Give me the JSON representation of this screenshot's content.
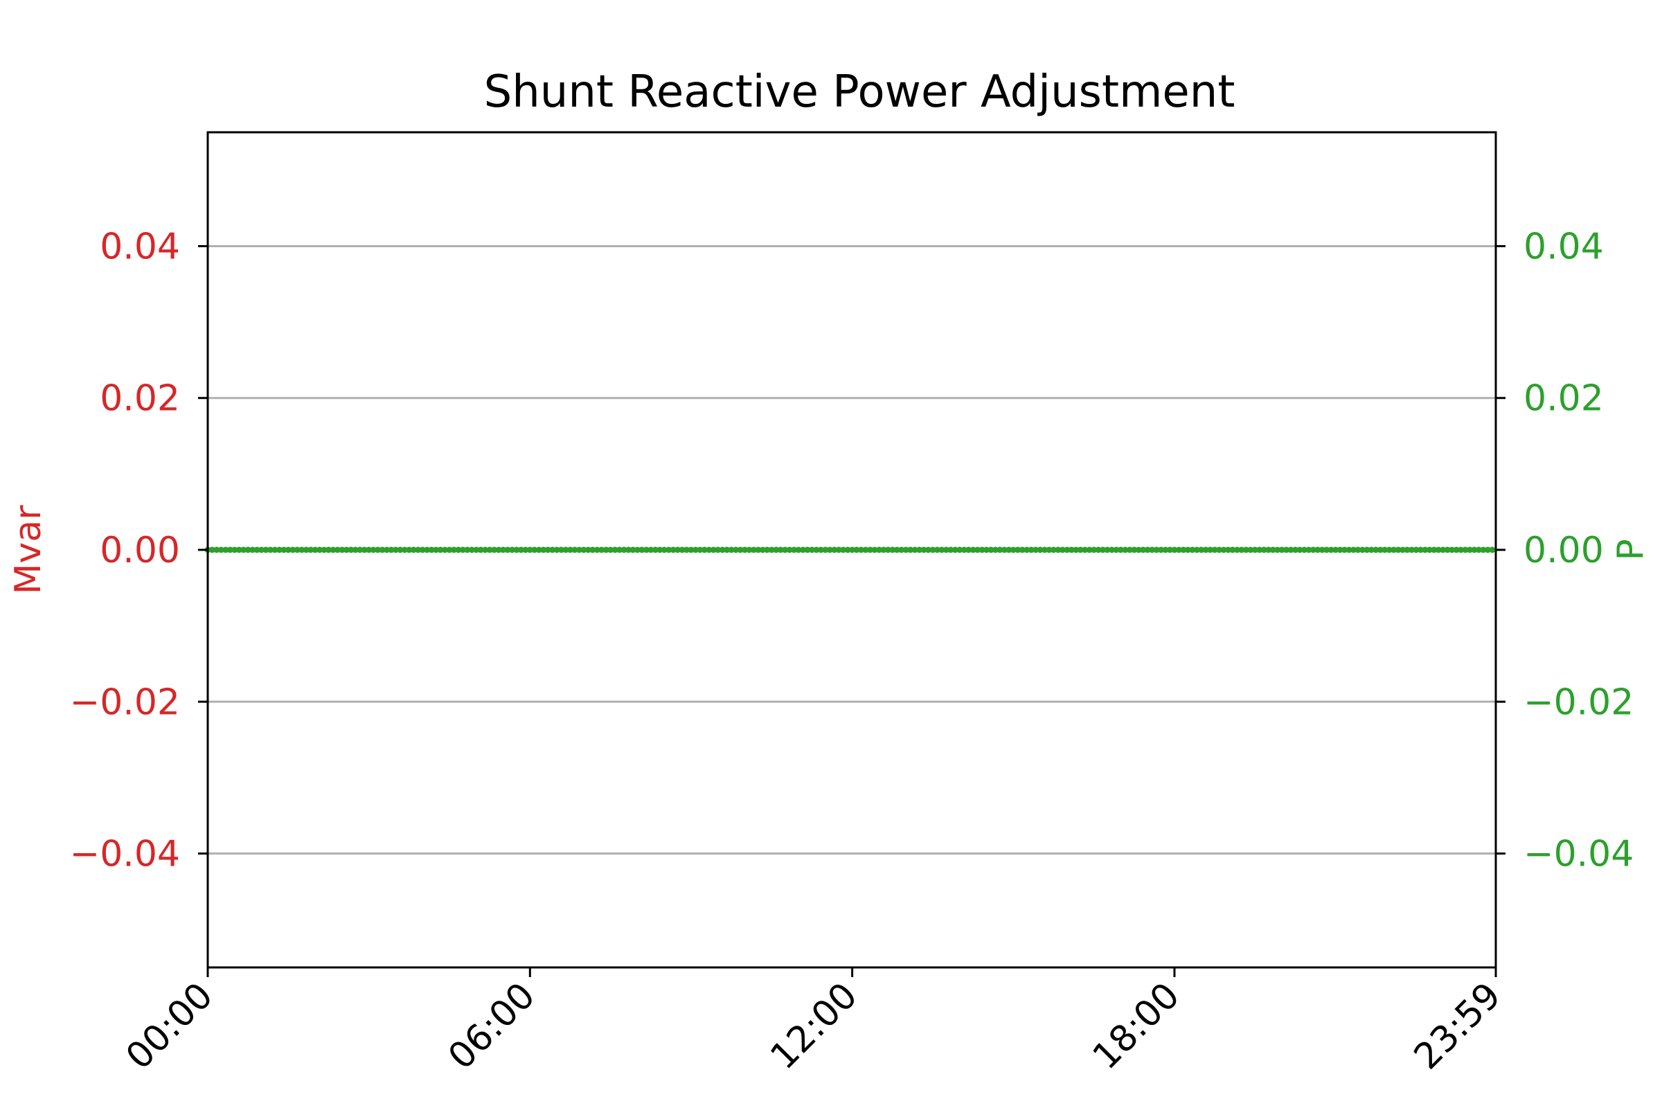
{
  "chart_data": {
    "type": "line",
    "title": "Shunt Reactive Power Adjustment",
    "xlabel": "",
    "ylabel_left": "Mvar",
    "ylabel_right": "P",
    "x_ticks": [
      "00:00",
      "06:00",
      "12:00",
      "18:00",
      "23:59"
    ],
    "x_range_minutes": [
      0,
      1439
    ],
    "y_left_ticks": [
      "0.04",
      "0.02",
      "0.00",
      "−0.02",
      "−0.04"
    ],
    "y_left_tick_values": [
      0.04,
      0.02,
      0.0,
      -0.02,
      -0.04
    ],
    "y_right_ticks": [
      "0.04",
      "0.02",
      "0.00",
      "−0.02",
      "−0.04"
    ],
    "y_right_tick_values": [
      0.04,
      0.02,
      0.0,
      -0.02,
      -0.04
    ],
    "ylim": [
      -0.055,
      0.055
    ],
    "grid": "horizontal",
    "series": [
      {
        "axis": "right",
        "x_start_minute": 0,
        "x_end_minute": 1439,
        "sample_interval_minutes": 5,
        "constant_value": 0.0,
        "marker": "dot"
      }
    ]
  },
  "colors": {
    "left_axis": "#d62728",
    "right_axis": "#2ca02c",
    "grid": "#b0b0b0",
    "frame": "#000000"
  }
}
